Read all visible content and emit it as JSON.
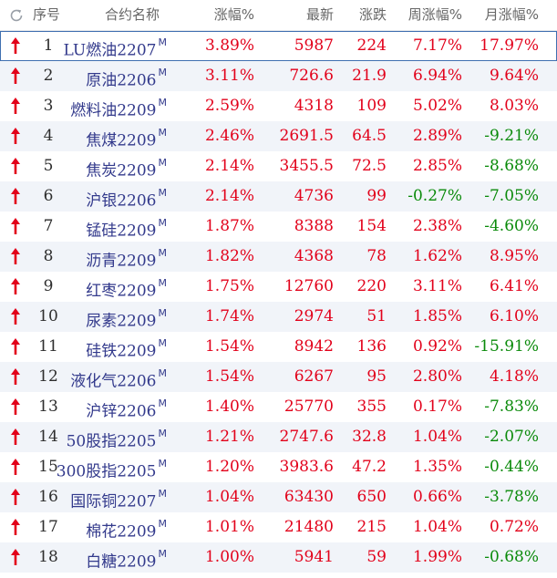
{
  "header": {
    "index": "序号",
    "name": "合约名称",
    "change_pct": "涨幅%",
    "last": "最新",
    "change": "涨跌",
    "week_pct": "周涨幅%",
    "month_pct": "月涨幅%"
  },
  "colors": {
    "up": "#e2001a",
    "down": "#0a8a0a",
    "name": "#333a8c"
  },
  "rows": [
    {
      "idx": "1",
      "name": "LU燃油2207",
      "tag": "M",
      "chg": "3.89%",
      "last": "5987",
      "diff": "224",
      "week": "7.17%",
      "month": "17.97%",
      "week_dir": "up",
      "month_dir": "up"
    },
    {
      "idx": "2",
      "name": "原油2206",
      "tag": "M",
      "chg": "3.11%",
      "last": "726.6",
      "diff": "21.9",
      "week": "6.94%",
      "month": "9.64%",
      "week_dir": "up",
      "month_dir": "up"
    },
    {
      "idx": "3",
      "name": "燃料油2209",
      "tag": "M",
      "chg": "2.59%",
      "last": "4318",
      "diff": "109",
      "week": "5.02%",
      "month": "8.03%",
      "week_dir": "up",
      "month_dir": "up"
    },
    {
      "idx": "4",
      "name": "焦煤2209",
      "tag": "M",
      "chg": "2.46%",
      "last": "2691.5",
      "diff": "64.5",
      "week": "2.89%",
      "month": "-9.21%",
      "week_dir": "up",
      "month_dir": "down"
    },
    {
      "idx": "5",
      "name": "焦炭2209",
      "tag": "M",
      "chg": "2.14%",
      "last": "3455.5",
      "diff": "72.5",
      "week": "2.85%",
      "month": "-8.68%",
      "week_dir": "up",
      "month_dir": "down"
    },
    {
      "idx": "6",
      "name": "沪银2206",
      "tag": "M",
      "chg": "2.14%",
      "last": "4736",
      "diff": "99",
      "week": "-0.27%",
      "month": "-7.05%",
      "week_dir": "down",
      "month_dir": "down"
    },
    {
      "idx": "7",
      "name": "锰硅2209",
      "tag": "M",
      "chg": "1.87%",
      "last": "8388",
      "diff": "154",
      "week": "2.38%",
      "month": "-4.60%",
      "week_dir": "up",
      "month_dir": "down"
    },
    {
      "idx": "8",
      "name": "沥青2209",
      "tag": "M",
      "chg": "1.82%",
      "last": "4368",
      "diff": "78",
      "week": "1.62%",
      "month": "8.95%",
      "week_dir": "up",
      "month_dir": "up"
    },
    {
      "idx": "9",
      "name": "红枣2209",
      "tag": "M",
      "chg": "1.75%",
      "last": "12760",
      "diff": "220",
      "week": "3.11%",
      "month": "6.41%",
      "week_dir": "up",
      "month_dir": "up"
    },
    {
      "idx": "10",
      "name": "尿素2209",
      "tag": "M",
      "chg": "1.74%",
      "last": "2974",
      "diff": "51",
      "week": "1.85%",
      "month": "6.10%",
      "week_dir": "up",
      "month_dir": "up"
    },
    {
      "idx": "11",
      "name": "硅铁2209",
      "tag": "M",
      "chg": "1.54%",
      "last": "8942",
      "diff": "136",
      "week": "0.92%",
      "month": "-15.91%",
      "week_dir": "up",
      "month_dir": "down"
    },
    {
      "idx": "12",
      "name": "液化气2206",
      "tag": "M",
      "chg": "1.54%",
      "last": "6267",
      "diff": "95",
      "week": "2.80%",
      "month": "4.18%",
      "week_dir": "up",
      "month_dir": "up"
    },
    {
      "idx": "13",
      "name": "沪锌2206",
      "tag": "M",
      "chg": "1.40%",
      "last": "25770",
      "diff": "355",
      "week": "0.17%",
      "month": "-7.83%",
      "week_dir": "up",
      "month_dir": "down"
    },
    {
      "idx": "14",
      "name": "50股指2205",
      "tag": "M",
      "chg": "1.21%",
      "last": "2747.6",
      "diff": "32.8",
      "week": "1.04%",
      "month": "-2.07%",
      "week_dir": "up",
      "month_dir": "down"
    },
    {
      "idx": "15",
      "name": "300股指2205",
      "tag": "M",
      "chg": "1.20%",
      "last": "3983.6",
      "diff": "47.2",
      "week": "1.35%",
      "month": "-0.44%",
      "week_dir": "up",
      "month_dir": "down"
    },
    {
      "idx": "16",
      "name": "国际铜2207",
      "tag": "M",
      "chg": "1.04%",
      "last": "63430",
      "diff": "650",
      "week": "0.66%",
      "month": "-3.78%",
      "week_dir": "up",
      "month_dir": "down"
    },
    {
      "idx": "17",
      "name": "棉花2209",
      "tag": "M",
      "chg": "1.01%",
      "last": "21480",
      "diff": "215",
      "week": "1.04%",
      "month": "0.72%",
      "week_dir": "up",
      "month_dir": "up"
    },
    {
      "idx": "18",
      "name": "白糖2209",
      "tag": "M",
      "chg": "1.00%",
      "last": "5941",
      "diff": "59",
      "week": "1.99%",
      "month": "-0.68%",
      "week_dir": "up",
      "month_dir": "down"
    }
  ]
}
